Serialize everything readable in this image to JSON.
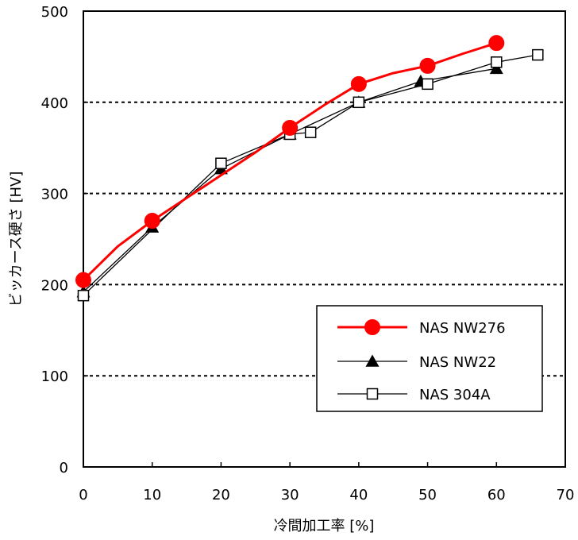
{
  "chart_data": {
    "type": "line",
    "xlabel": "冷間加工率  [%]",
    "ylabel": "ビッカース硬さ  [HV]",
    "xlim": [
      0,
      70
    ],
    "ylim": [
      0,
      500
    ],
    "x_ticks": [
      "0",
      "10",
      "20",
      "30",
      "40",
      "50",
      "60",
      "70"
    ],
    "y_ticks": [
      "0",
      "100",
      "200",
      "300",
      "400",
      "500"
    ],
    "grid": "horizontal dotted at 100, 200, 300, 400",
    "legend_position": "bottom-right",
    "series": [
      {
        "name": "NAS NW276",
        "color": "#ff0000",
        "marker": "filled-circle",
        "x": [
          0,
          10,
          30,
          40,
          50,
          60
        ],
        "y": [
          205,
          270,
          372,
          420,
          440,
          465
        ],
        "curve_x": [
          0,
          5,
          10,
          15,
          20,
          25,
          30,
          35,
          40,
          45,
          50,
          55,
          60
        ],
        "curve_y": [
          205,
          242,
          270,
          295,
          320,
          345,
          372,
          397,
          420,
          432,
          440,
          453,
          465
        ]
      },
      {
        "name": "NAS NW22",
        "color": "#000000",
        "marker": "filled-triangle",
        "x": [
          0,
          10,
          20,
          30,
          40,
          49,
          60
        ],
        "y": [
          192,
          263,
          327,
          365,
          400,
          423,
          437
        ]
      },
      {
        "name": "NAS 304A",
        "color": "#000000",
        "marker": "open-square",
        "x": [
          0,
          20,
          30,
          33,
          40,
          50,
          60,
          66
        ],
        "y": [
          188,
          333,
          365,
          367,
          400,
          420,
          444,
          452
        ]
      }
    ]
  }
}
